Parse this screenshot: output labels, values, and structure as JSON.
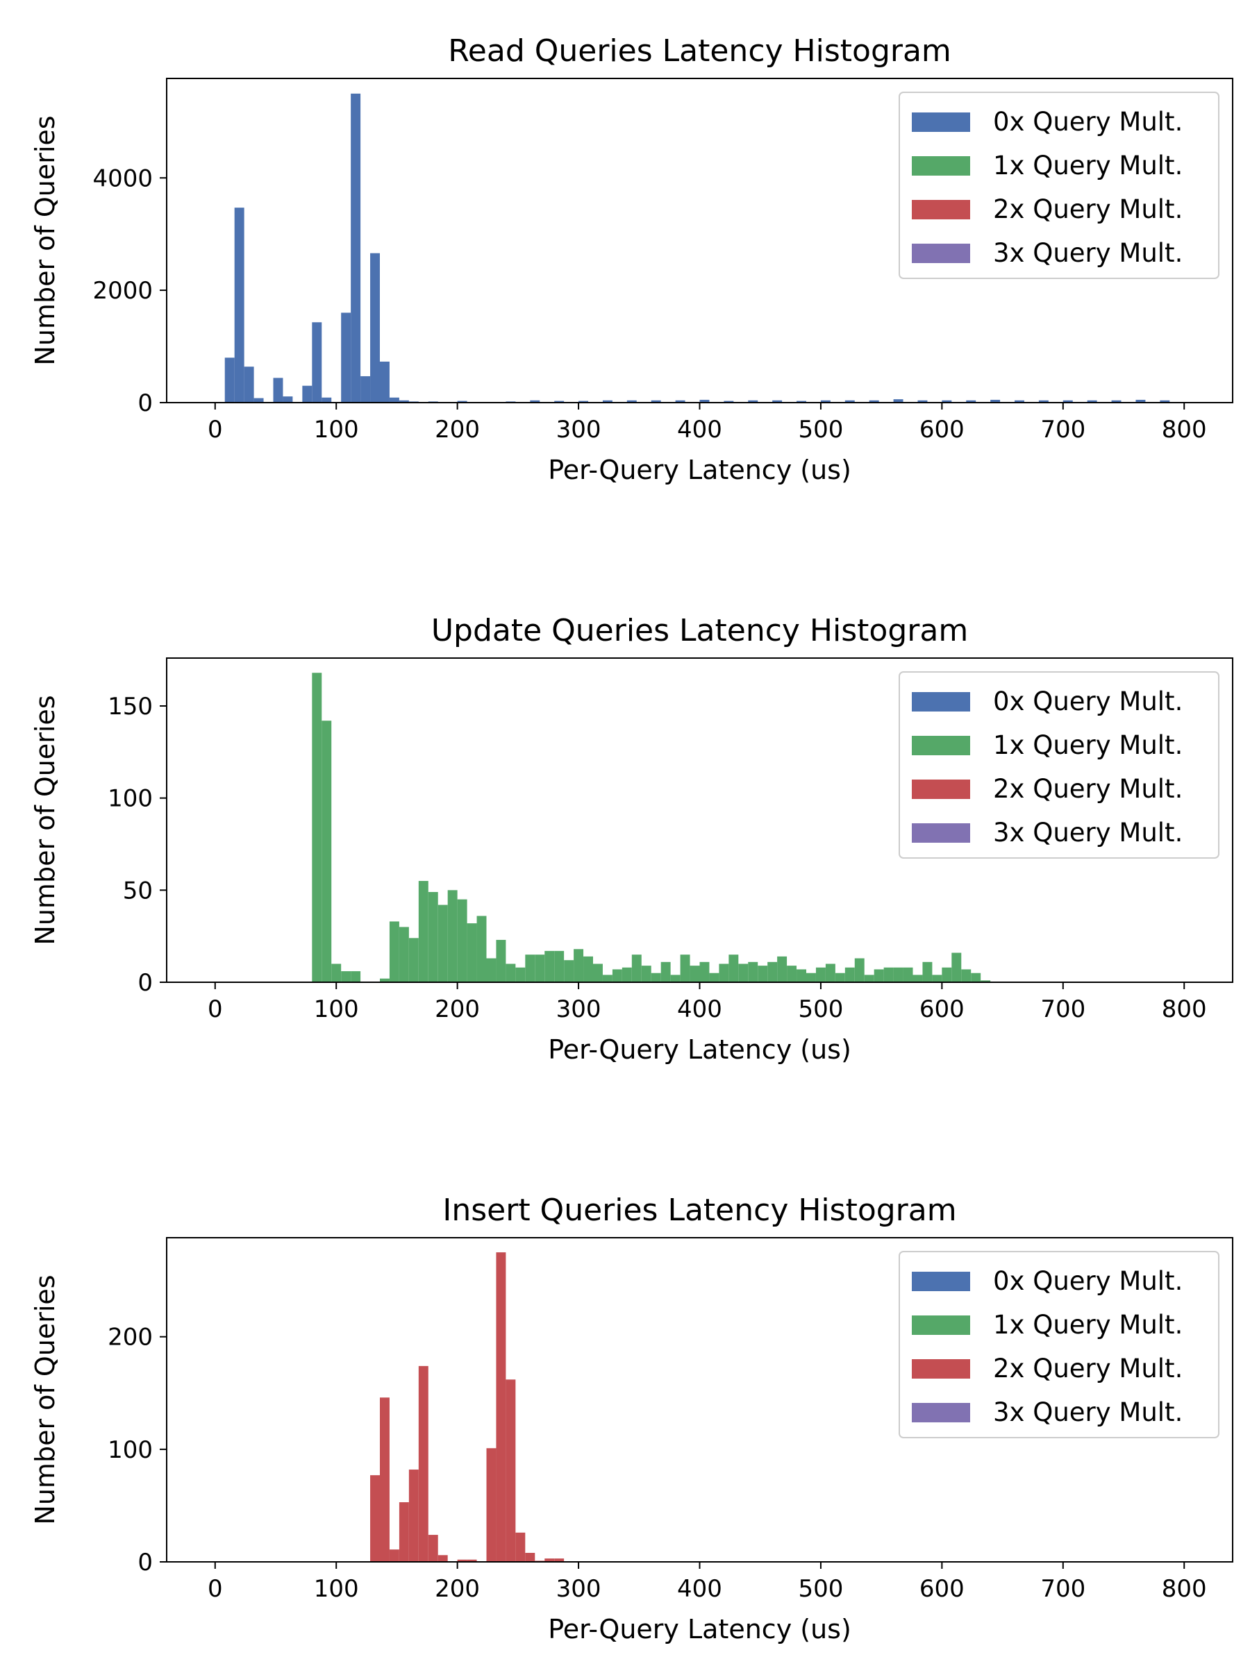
{
  "colors": {
    "0x": "#4c72b0",
    "1x": "#55a868",
    "2x": "#c44e52",
    "3x": "#8172b2"
  },
  "chart_data": [
    {
      "type": "bar",
      "title": "Read Queries Latency Histogram",
      "xlabel": "Per-Query Latency (us)",
      "ylabel": "Number of Queries",
      "xlim": [
        -40,
        840
      ],
      "ylim": [
        0,
        5770
      ],
      "xticks": [
        0,
        100,
        200,
        300,
        400,
        500,
        600,
        700,
        800
      ],
      "yticks": [
        0,
        2000,
        4000
      ],
      "bin_width": 8,
      "legend_position": "upper right",
      "legend": [
        "0x Query Mult.",
        "1x Query Mult.",
        "2x Query Mult.",
        "3x Query Mult."
      ],
      "series": [
        {
          "name": "0x Query Mult.",
          "color_key": "0x",
          "bin_start": [
            8,
            16,
            24,
            32,
            48,
            56,
            72,
            80,
            88,
            104,
            112,
            120,
            128,
            136,
            144,
            152,
            160,
            176,
            200,
            240,
            260,
            280,
            300,
            320,
            340,
            360,
            380,
            400,
            420,
            440,
            460,
            480,
            500,
            520,
            540,
            560,
            580,
            600,
            620,
            640,
            660,
            680,
            700,
            720,
            740,
            760,
            780
          ],
          "values": [
            800,
            3470,
            640,
            80,
            440,
            110,
            300,
            1430,
            90,
            1600,
            5500,
            470,
            2660,
            730,
            90,
            40,
            20,
            20,
            30,
            20,
            40,
            30,
            30,
            40,
            40,
            40,
            40,
            50,
            30,
            40,
            40,
            30,
            40,
            40,
            40,
            60,
            40,
            40,
            40,
            50,
            40,
            40,
            40,
            40,
            40,
            50,
            40
          ]
        },
        {
          "name": "1x Query Mult.",
          "color_key": "1x",
          "bin_start": [],
          "values": []
        },
        {
          "name": "2x Query Mult.",
          "color_key": "2x",
          "bin_start": [],
          "values": []
        },
        {
          "name": "3x Query Mult.",
          "color_key": "3x",
          "bin_start": [],
          "values": []
        }
      ]
    },
    {
      "type": "bar",
      "title": "Update Queries Latency Histogram",
      "xlabel": "Per-Query Latency (us)",
      "ylabel": "Number of Queries",
      "xlim": [
        -40,
        840
      ],
      "ylim": [
        0,
        176
      ],
      "xticks": [
        0,
        100,
        200,
        300,
        400,
        500,
        600,
        700,
        800
      ],
      "yticks": [
        0,
        50,
        100,
        150
      ],
      "bin_width": 8,
      "legend_position": "upper right",
      "legend": [
        "0x Query Mult.",
        "1x Query Mult.",
        "2x Query Mult.",
        "3x Query Mult."
      ],
      "series": [
        {
          "name": "0x Query Mult.",
          "color_key": "0x",
          "bin_start": [],
          "values": []
        },
        {
          "name": "1x Query Mult.",
          "color_key": "1x",
          "bin_start": [
            80,
            88,
            96,
            104,
            112,
            136,
            144,
            152,
            160,
            168,
            176,
            184,
            192,
            200,
            208,
            216,
            224,
            232,
            240,
            248,
            256,
            264,
            272,
            280,
            288,
            296,
            304,
            312,
            320,
            328,
            336,
            344,
            352,
            360,
            368,
            376,
            384,
            392,
            400,
            408,
            416,
            424,
            432,
            440,
            448,
            456,
            464,
            472,
            480,
            488,
            496,
            504,
            512,
            520,
            528,
            536,
            544,
            552,
            560,
            568,
            576,
            584,
            592,
            600,
            608,
            616,
            624,
            632
          ],
          "values": [
            168,
            142,
            10,
            6,
            6,
            2,
            33,
            30,
            24,
            55,
            49,
            42,
            50,
            45,
            32,
            36,
            13,
            23,
            10,
            8,
            15,
            15,
            17,
            17,
            12,
            18,
            14,
            10,
            4,
            7,
            8,
            15,
            9,
            5,
            11,
            4,
            15,
            9,
            11,
            5,
            10,
            15,
            10,
            11,
            9,
            11,
            14,
            9,
            7,
            5,
            8,
            10,
            5,
            8,
            13,
            4,
            7,
            8,
            8,
            8,
            4,
            11,
            4,
            8,
            16,
            7,
            5,
            1
          ]
        },
        {
          "name": "2x Query Mult.",
          "color_key": "2x",
          "bin_start": [],
          "values": []
        },
        {
          "name": "3x Query Mult.",
          "color_key": "3x",
          "bin_start": [],
          "values": []
        }
      ]
    },
    {
      "type": "bar",
      "title": "Insert Queries Latency Histogram",
      "xlabel": "Per-Query Latency (us)",
      "ylabel": "Number of Queries",
      "xlim": [
        -40,
        840
      ],
      "ylim": [
        0,
        288
      ],
      "xticks": [
        0,
        100,
        200,
        300,
        400,
        500,
        600,
        700,
        800
      ],
      "yticks": [
        0,
        100,
        200
      ],
      "bin_width": 8,
      "legend_position": "upper right",
      "legend": [
        "0x Query Mult.",
        "1x Query Mult.",
        "2x Query Mult.",
        "3x Query Mult."
      ],
      "series": [
        {
          "name": "0x Query Mult.",
          "color_key": "0x",
          "bin_start": [],
          "values": []
        },
        {
          "name": "1x Query Mult.",
          "color_key": "1x",
          "bin_start": [],
          "values": []
        },
        {
          "name": "2x Query Mult.",
          "color_key": "2x",
          "bin_start": [
            128,
            136,
            144,
            152,
            160,
            168,
            176,
            184,
            200,
            208,
            224,
            232,
            240,
            248,
            256,
            264,
            272,
            280
          ],
          "values": [
            77,
            146,
            11,
            53,
            82,
            174,
            24,
            6,
            2,
            2,
            101,
            275,
            162,
            26,
            8,
            1,
            3,
            3
          ]
        },
        {
          "name": "3x Query Mult.",
          "color_key": "3x",
          "bin_start": [],
          "values": []
        }
      ]
    }
  ]
}
